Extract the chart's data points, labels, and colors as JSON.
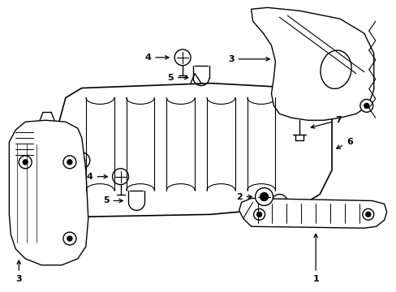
{
  "background_color": "#ffffff",
  "line_color": "#000000",
  "line_width": 1.0,
  "label_fontsize": 8,
  "fig_width": 4.89,
  "fig_height": 3.6,
  "dpi": 100
}
